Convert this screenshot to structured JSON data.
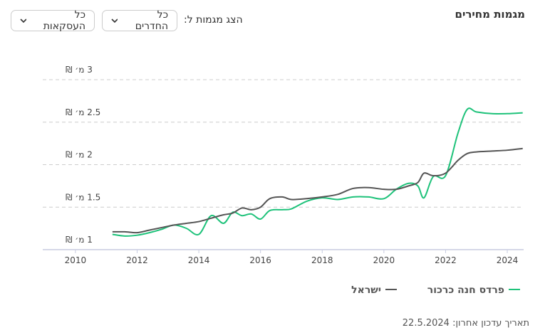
{
  "header": {
    "title": "מגמות מחירים"
  },
  "controls": {
    "label": "הצג מגמות ל:",
    "rooms": "כל החדרים",
    "deals": "כל העסקאות"
  },
  "chart_data": {
    "type": "line",
    "x": [
      2011.2,
      2011.6,
      2012,
      2012.4,
      2012.8,
      2013.2,
      2013.6,
      2014,
      2014.4,
      2014.8,
      2015.1,
      2015.4,
      2015.7,
      2016,
      2016.3,
      2016.7,
      2017,
      2017.5,
      2018,
      2018.5,
      2019,
      2019.5,
      2020,
      2020.4,
      2020.8,
      2021.1,
      2021.3,
      2021.6,
      2022,
      2022.4,
      2022.7,
      2023,
      2023.5,
      2024,
      2024.5
    ],
    "series": [
      {
        "name": "פרדס חנה כרכור",
        "color": "#1ec27a",
        "values": [
          1.18,
          1.16,
          1.17,
          1.2,
          1.24,
          1.29,
          1.25,
          1.18,
          1.4,
          1.31,
          1.44,
          1.4,
          1.42,
          1.36,
          1.46,
          1.47,
          1.48,
          1.57,
          1.61,
          1.59,
          1.62,
          1.62,
          1.6,
          1.71,
          1.78,
          1.75,
          1.61,
          1.86,
          1.87,
          2.37,
          2.65,
          2.62,
          2.6,
          2.6,
          2.61
        ]
      },
      {
        "name": "ישראל",
        "color": "#555555",
        "values": [
          1.21,
          1.21,
          1.2,
          1.23,
          1.26,
          1.29,
          1.31,
          1.33,
          1.37,
          1.41,
          1.43,
          1.49,
          1.47,
          1.5,
          1.6,
          1.62,
          1.59,
          1.6,
          1.62,
          1.65,
          1.72,
          1.73,
          1.71,
          1.71,
          1.75,
          1.79,
          1.9,
          1.87,
          1.9,
          2.05,
          2.13,
          2.15,
          2.16,
          2.17,
          2.19
        ]
      }
    ],
    "xlim": [
      2008.94,
      2024.53
    ],
    "xticks": [
      2010,
      2012,
      2014,
      2016,
      2018,
      2020,
      2022,
      2024
    ],
    "ylim": [
      1,
      3
    ],
    "yticks": [
      {
        "value": 1,
        "label": "1 מ׳ ₪"
      },
      {
        "value": 1.5,
        "label": "1.5 מ׳ ₪"
      },
      {
        "value": 2,
        "label": "2 מ׳ ₪"
      },
      {
        "value": 2.5,
        "label": "2.5 מ׳ ₪"
      },
      {
        "value": 3,
        "label": "3 מ׳ ₪"
      }
    ],
    "grid": true
  },
  "footer": {
    "updated": "תאריך עדכון אחרון: 22.5.2024"
  }
}
